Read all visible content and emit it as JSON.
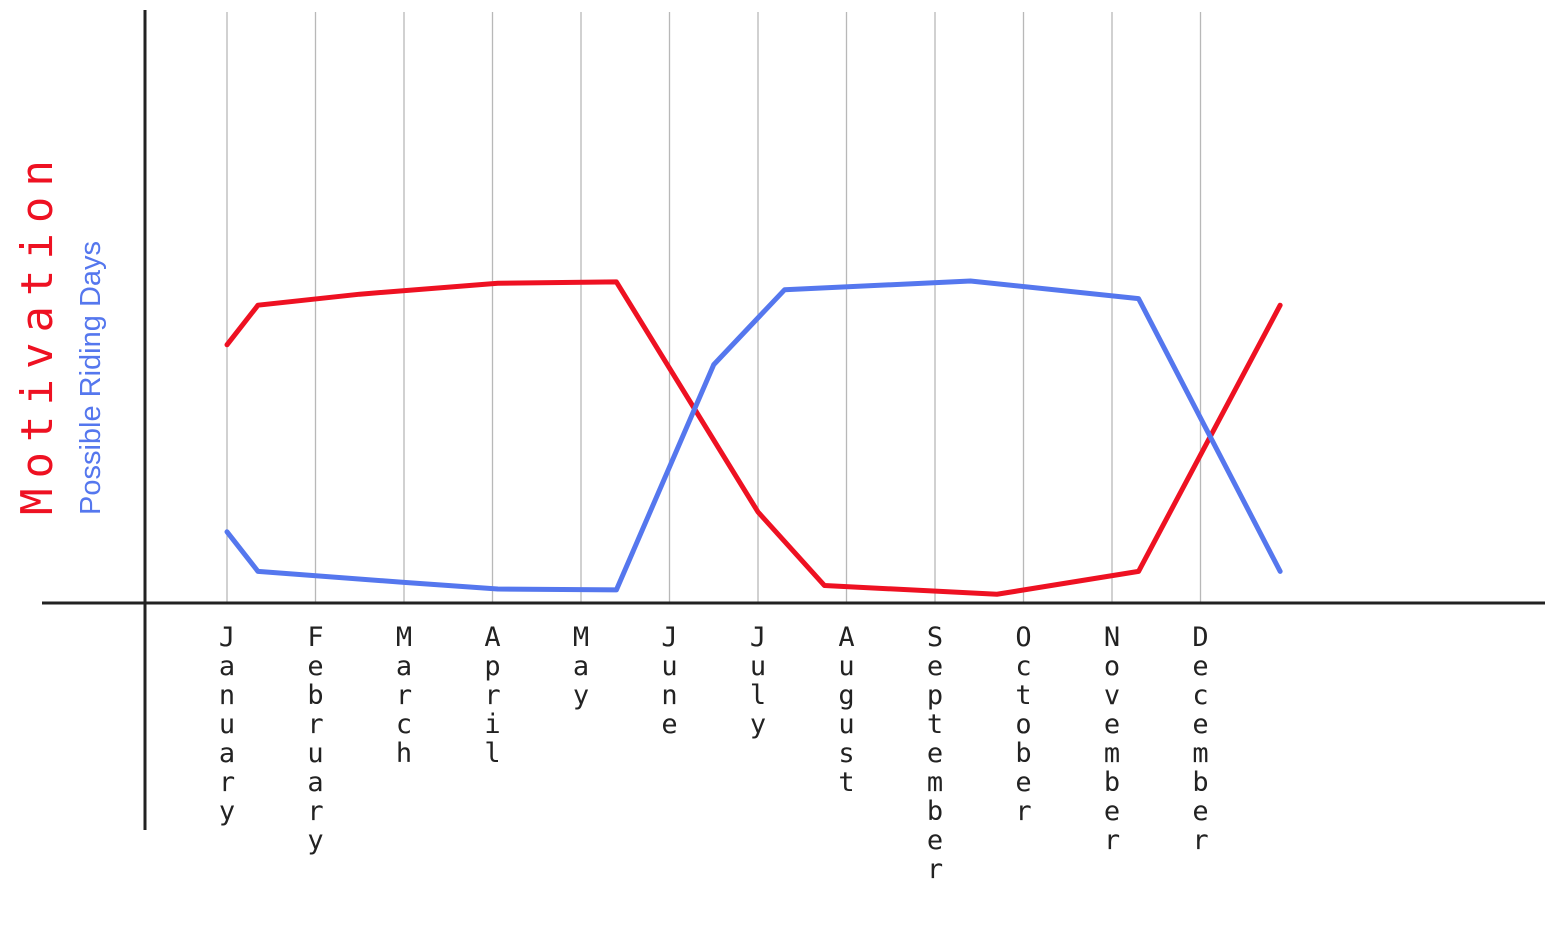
{
  "chart_data": {
    "type": "line",
    "title": "",
    "xlabel": "",
    "ylabels": [
      {
        "text": "Motivation",
        "color": "#ee1122"
      },
      {
        "text": "Possible Riding Days",
        "color": "#5577ee"
      }
    ],
    "categories": [
      "January",
      "February",
      "March",
      "April",
      "May",
      "June",
      "July",
      "August",
      "September",
      "October",
      "November",
      "December"
    ],
    "ylim": [
      0,
      100
    ],
    "grid": "vertical",
    "legend": "none",
    "series": [
      {
        "key": "motivation",
        "color": "#ee1122",
        "x": [
          0,
          0.35,
          1.5,
          3.06,
          4.4,
          6.0,
          6.75,
          8.7,
          10.3,
          11.9
        ],
        "y": [
          58,
          67,
          69.5,
          72,
          72.3,
          20,
          3.3,
          1.3,
          6.5,
          67
        ]
      },
      {
        "key": "riding_days",
        "color": "#5577ee",
        "x": [
          0,
          0.35,
          2.0,
          3.06,
          4.4,
          5.5,
          6.3,
          8.4,
          10.3,
          11.9
        ],
        "y": [
          15.5,
          6.5,
          4.0,
          2.5,
          2.3,
          53.5,
          70.5,
          72.5,
          68.5,
          6.5
        ]
      }
    ]
  }
}
